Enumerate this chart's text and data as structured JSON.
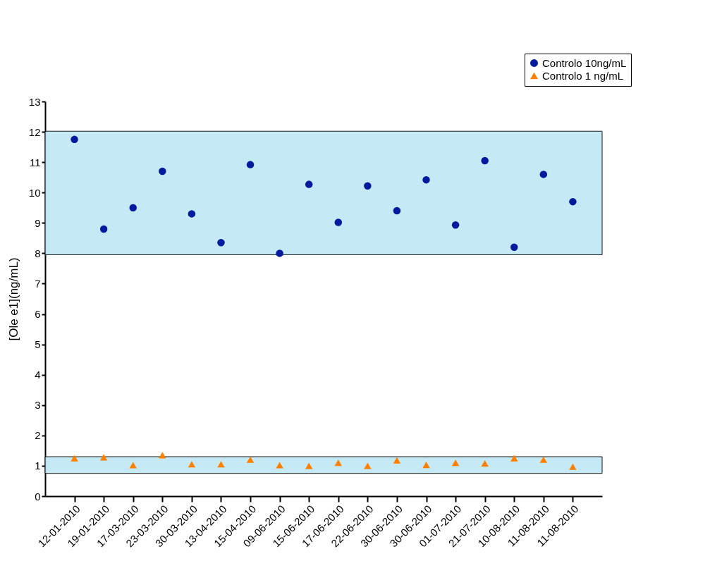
{
  "chart_data": {
    "type": "scatter",
    "ylabel": "[Ole e1](ng/mL)",
    "categories": [
      "12-01-2010",
      "19-01-2010",
      "17-03-2010",
      "23-03-2010",
      "30-03-2010",
      "13-04-2010",
      "15-04-2010",
      "09-06-2010",
      "15-06-2010",
      "17-06-2010",
      "22-06-2010",
      "30-06-2010",
      "30-06-2010",
      "01-07-2010",
      "21-07-2010",
      "10-08-2010",
      "11-08-2010",
      "11-08-2010"
    ],
    "series": [
      {
        "name": "Controlo 10ng/mL",
        "color": "#001a9e",
        "marker": "circle",
        "values": [
          11.75,
          8.8,
          9.5,
          10.7,
          9.3,
          8.35,
          10.92,
          8.0,
          10.27,
          9.02,
          10.22,
          9.4,
          10.42,
          8.93,
          11.05,
          8.2,
          10.6,
          9.7
        ]
      },
      {
        "name": "Controlo  1 ng/mL",
        "color": "#ff7f00",
        "marker": "triangle",
        "values": [
          1.25,
          1.28,
          1.02,
          1.35,
          1.05,
          1.05,
          1.2,
          1.02,
          1.0,
          1.1,
          1.0,
          1.18,
          1.03,
          1.1,
          1.08,
          1.25,
          1.2,
          0.97
        ]
      }
    ],
    "ylim": [
      0,
      13
    ],
    "yticks": [
      0,
      1,
      2,
      3,
      4,
      5,
      6,
      7,
      8,
      9,
      10,
      11,
      12,
      13
    ],
    "bands": [
      {
        "axis": "y",
        "from": 7.95,
        "to": 12.02,
        "color": "#bfe8f5"
      },
      {
        "axis": "y",
        "from": 0.75,
        "to": 1.3,
        "color": "#bfe8f5"
      }
    ],
    "grid": false,
    "legend": "top right"
  }
}
